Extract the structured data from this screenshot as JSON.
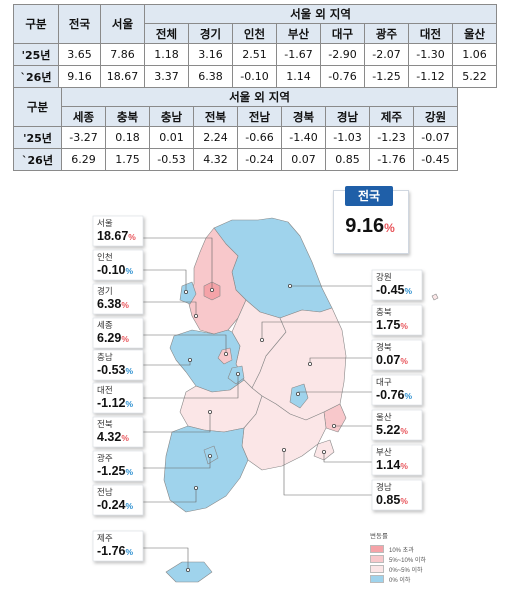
{
  "table1": {
    "h_gubun": "구분",
    "h_nation": "전국",
    "h_seoul": "서울",
    "h_outside": "서울 외 지역",
    "regions": [
      "전체",
      "경기",
      "인천",
      "부산",
      "대구",
      "광주",
      "대전",
      "울산"
    ],
    "rows": [
      {
        "label": "'25년",
        "nation": "3.65",
        "seoul": "7.86",
        "vals": [
          "1.18",
          "3.16",
          "2.51",
          "-1.67",
          "-2.90",
          "-2.07",
          "-1.30",
          "1.06"
        ]
      },
      {
        "label": "`26년",
        "nation": "9.16",
        "seoul": "18.67",
        "vals": [
          "3.37",
          "6.38",
          "-0.10",
          "1.14",
          "-0.76",
          "-1.25",
          "-1.12",
          "5.22"
        ]
      }
    ]
  },
  "table2": {
    "h_gubun": "구분",
    "h_outside": "서울 외 지역",
    "regions": [
      "세종",
      "충북",
      "충남",
      "전북",
      "전남",
      "경북",
      "경남",
      "제주",
      "강원"
    ],
    "rows": [
      {
        "label": "'25년",
        "vals": [
          "-3.27",
          "0.18",
          "0.01",
          "2.24",
          "-0.66",
          "-1.40",
          "-1.03",
          "-1.23",
          "-0.07"
        ]
      },
      {
        "label": "`26년",
        "vals": [
          "6.29",
          "1.75",
          "-0.53",
          "4.32",
          "-0.24",
          "0.07",
          "0.85",
          "-1.76",
          "-0.45"
        ]
      }
    ]
  },
  "map": {
    "national": {
      "name": "전국",
      "value": "9.16",
      "pct": "%"
    },
    "left_cards": [
      {
        "name": "서울",
        "value": "18.67",
        "pct": "%",
        "color": "#e8555b"
      },
      {
        "name": "인천",
        "value": "-0.10",
        "pct": "%",
        "color": "#2b8fd0"
      },
      {
        "name": "경기",
        "value": "6.38",
        "pct": "%",
        "color": "#e8555b"
      },
      {
        "name": "세종",
        "value": "6.29",
        "pct": "%",
        "color": "#e8555b"
      },
      {
        "name": "충남",
        "value": "-0.53",
        "pct": "%",
        "color": "#2b8fd0"
      },
      {
        "name": "대전",
        "value": "-1.12",
        "pct": "%",
        "color": "#2b8fd0"
      },
      {
        "name": "전북",
        "value": "4.32",
        "pct": "%",
        "color": "#e8555b"
      },
      {
        "name": "광주",
        "value": "-1.25",
        "pct": "%",
        "color": "#2b8fd0"
      },
      {
        "name": "전남",
        "value": "-0.24",
        "pct": "%",
        "color": "#2b8fd0"
      },
      {
        "name": "제주",
        "value": "-1.76",
        "pct": "%",
        "color": "#2b8fd0"
      }
    ],
    "right_cards": [
      {
        "name": "강원",
        "value": "-0.45",
        "pct": "%",
        "color": "#2b8fd0"
      },
      {
        "name": "충북",
        "value": "1.75",
        "pct": "%",
        "color": "#e8555b"
      },
      {
        "name": "경북",
        "value": "0.07",
        "pct": "%",
        "color": "#e8555b"
      },
      {
        "name": "대구",
        "value": "-0.76",
        "pct": "%",
        "color": "#2b8fd0"
      },
      {
        "name": "울산",
        "value": "5.22",
        "pct": "%",
        "color": "#e8555b"
      },
      {
        "name": "부산",
        "value": "1.14",
        "pct": "%",
        "color": "#e8555b"
      },
      {
        "name": "경남",
        "value": "0.85",
        "pct": "%",
        "color": "#e8555b"
      }
    ],
    "legend": {
      "title": "변동률",
      "items": [
        {
          "label": "10% 초과",
          "color": "#f5a3a8"
        },
        {
          "label": "5%~10% 이하",
          "color": "#f8c8cb"
        },
        {
          "label": "0%~5% 이하",
          "color": "#fbe6e7"
        },
        {
          "label": "0% 이하",
          "color": "#9fd3ec"
        }
      ]
    }
  }
}
